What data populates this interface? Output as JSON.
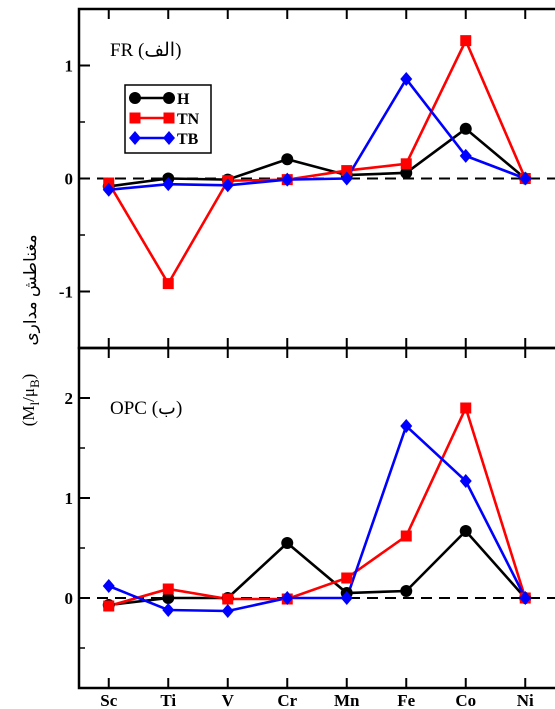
{
  "chart_data": [
    {
      "type": "line",
      "panel_label": "FR (الف)",
      "categories": [
        "Sc",
        "Ti",
        "V",
        "Cr",
        "Mn",
        "Fe",
        "Co",
        "Ni"
      ],
      "ylim": [
        -1.5,
        1.5
      ],
      "yticks": [
        -1,
        0,
        1
      ],
      "ytick_labels": [
        "-1",
        "0",
        "1"
      ],
      "legend": "top-left",
      "reference_line": 0,
      "series": [
        {
          "name": "H",
          "color": "#000000",
          "marker": "circle",
          "values": [
            -0.07,
            0.0,
            -0.01,
            0.17,
            0.03,
            0.05,
            0.44,
            0.0
          ]
        },
        {
          "name": "TN",
          "color": "#ff0000",
          "marker": "square",
          "values": [
            -0.04,
            -0.93,
            -0.02,
            -0.01,
            0.07,
            0.13,
            1.22,
            0.0
          ]
        },
        {
          "name": "TB",
          "color": "#0000ff",
          "marker": "diamond",
          "values": [
            -0.1,
            -0.05,
            -0.06,
            -0.01,
            0.0,
            0.88,
            0.2,
            0.0
          ]
        }
      ]
    },
    {
      "type": "line",
      "panel_label": "OPC (ب)",
      "categories": [
        "Sc",
        "Ti",
        "V",
        "Cr",
        "Mn",
        "Fe",
        "Co",
        "Ni"
      ],
      "ylim": [
        -0.9,
        2.5
      ],
      "yticks": [
        0,
        1,
        2
      ],
      "ytick_labels": [
        "0",
        "1",
        "2"
      ],
      "reference_line": 0,
      "series": [
        {
          "name": "H",
          "color": "#000000",
          "marker": "circle",
          "values": [
            -0.07,
            0.0,
            0.0,
            0.55,
            0.05,
            0.07,
            0.67,
            0.0
          ]
        },
        {
          "name": "TN",
          "color": "#ff0000",
          "marker": "square",
          "values": [
            -0.08,
            0.09,
            -0.01,
            -0.01,
            0.2,
            0.62,
            1.9,
            0.0
          ]
        },
        {
          "name": "TB",
          "color": "#0000ff",
          "marker": "diamond",
          "values": [
            0.12,
            -0.12,
            -0.13,
            0.0,
            0.0,
            1.72,
            1.17,
            0.0
          ]
        }
      ]
    }
  ],
  "ylabel_text": "مغناطش مداری",
  "ylabel_unit_main": "(M",
  "ylabel_unit_sub1": "l",
  "ylabel_unit_mid": "/μ",
  "ylabel_unit_sub2": "B",
  "ylabel_unit_end": ")"
}
